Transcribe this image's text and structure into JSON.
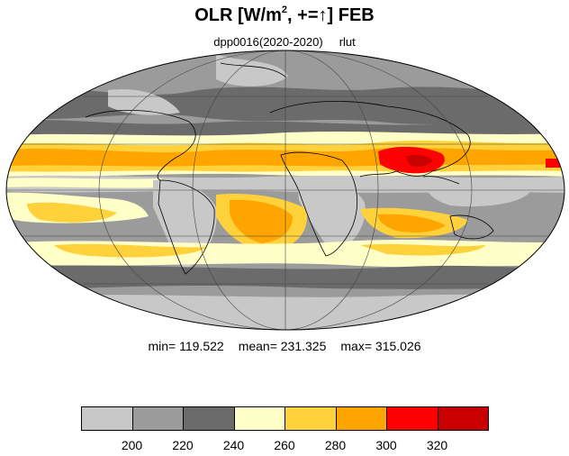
{
  "title": {
    "main": "OLR [W/m",
    "exp": "2",
    "rest": ", +=↑] FEB"
  },
  "subtitle": {
    "run": "dpp0016(2020-2020)",
    "variable": "rlut"
  },
  "stats": {
    "min": "min= 119.522",
    "mean": "mean= 231.325",
    "max": "max= 315.026"
  },
  "colorbar": {
    "colors": [
      "#c8c8c8",
      "#9b9b9b",
      "#6b6b6b",
      "#ffffc8",
      "#ffd23c",
      "#ffa500",
      "#ff0000",
      "#c80000"
    ],
    "labels": [
      "200",
      "220",
      "240",
      "260",
      "280",
      "300",
      "320"
    ]
  },
  "map": {
    "projection": "Mollweide",
    "grid": true
  }
}
